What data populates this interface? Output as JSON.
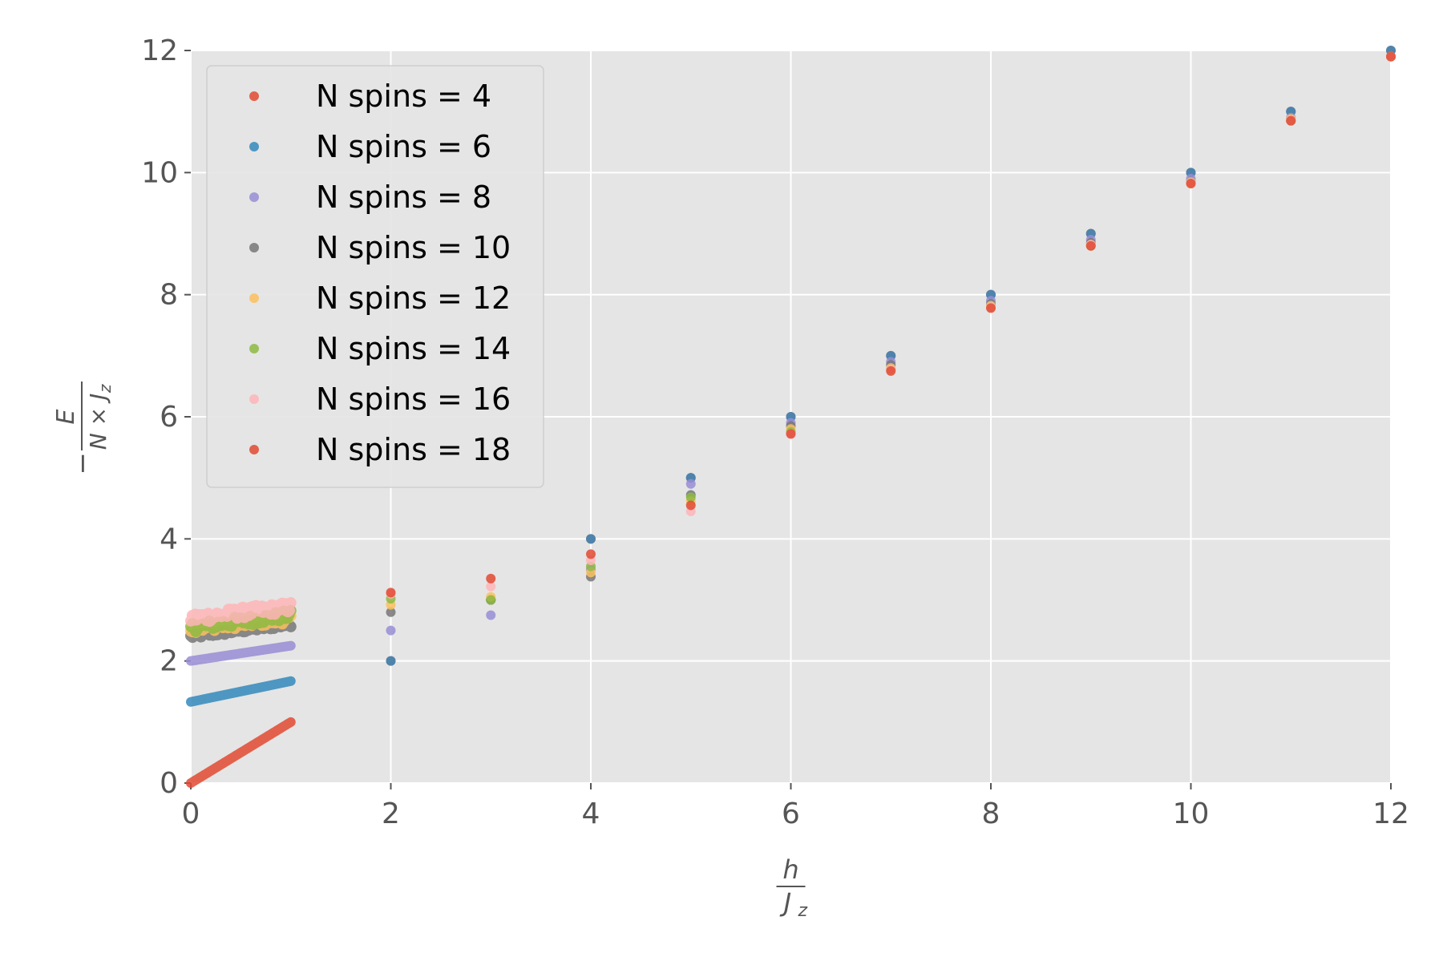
{
  "chart_data": {
    "type": "scatter",
    "title": "",
    "xlabel": {
      "numerator": "h",
      "denominator": "J",
      "denominator_sub": "z"
    },
    "ylabel": {
      "prefix": "−",
      "numerator": "E",
      "denominator": "N × J",
      "denominator_sub": "z"
    },
    "xlim": [
      0,
      12
    ],
    "ylim": [
      0,
      12
    ],
    "xticks": [
      "0",
      "2",
      "4",
      "6",
      "8",
      "10",
      "12"
    ],
    "yticks": [
      "0",
      "2",
      "4",
      "6",
      "8",
      "10",
      "12"
    ],
    "grid": true,
    "legend_position": "upper-left",
    "background": "#e5e5e5",
    "grid_color": "#ffffff",
    "series": [
      {
        "name": "N spins = 4",
        "color": "#e24a33",
        "dense": {
          "x0": 0.0,
          "x1": 1.0,
          "y0": 0.0,
          "y1": 1.0,
          "n": 60,
          "jitter": 0.0
        },
        "points": [
          [
            2,
            2.0
          ],
          [
            3,
            3.0
          ],
          [
            4,
            4.0
          ],
          [
            5,
            5.0
          ],
          [
            6,
            6.0
          ],
          [
            7,
            7.0
          ],
          [
            8,
            8.0
          ],
          [
            9,
            9.0
          ],
          [
            10,
            10.0
          ],
          [
            11,
            11.0
          ],
          [
            12,
            12.0
          ]
        ]
      },
      {
        "name": "N spins = 6",
        "color": "#348abd",
        "dense": {
          "x0": 0.0,
          "x1": 1.0,
          "y0": 1.33,
          "y1": 1.67,
          "n": 60,
          "jitter": 0.0
        },
        "points": [
          [
            2,
            2.0
          ],
          [
            3,
            3.0
          ],
          [
            4,
            4.0
          ],
          [
            5,
            5.0
          ],
          [
            6,
            6.0
          ],
          [
            7,
            7.0
          ],
          [
            8,
            8.0
          ],
          [
            9,
            9.0
          ],
          [
            10,
            10.0
          ],
          [
            11,
            11.0
          ],
          [
            12,
            12.0
          ]
        ]
      },
      {
        "name": "N spins = 8",
        "color": "#988ed5",
        "dense": {
          "x0": 0.0,
          "x1": 1.0,
          "y0": 2.0,
          "y1": 2.25,
          "n": 60,
          "jitter": 0.0
        },
        "points": [
          [
            2,
            2.5
          ],
          [
            3,
            2.75
          ],
          [
            4,
            3.5
          ],
          [
            5,
            4.9
          ],
          [
            6,
            5.9
          ],
          [
            7,
            6.9
          ],
          [
            8,
            7.9
          ],
          [
            9,
            8.9
          ],
          [
            10,
            9.9
          ],
          [
            11,
            10.9
          ],
          [
            12,
            11.9
          ]
        ]
      },
      {
        "name": "N spins = 10",
        "color": "#777777",
        "dense": {
          "x0": 0.0,
          "x1": 1.0,
          "y0": 2.4,
          "y1": 2.6,
          "n": 60,
          "jitter": 0.04
        },
        "points": [
          [
            2,
            2.8
          ],
          [
            3,
            3.0
          ],
          [
            4,
            3.38
          ],
          [
            5,
            4.72
          ],
          [
            6,
            5.85
          ],
          [
            7,
            6.85
          ],
          [
            8,
            7.85
          ],
          [
            9,
            8.85
          ],
          [
            10,
            9.85
          ],
          [
            11,
            10.85
          ],
          [
            12,
            11.9
          ]
        ]
      },
      {
        "name": "N spins = 12",
        "color": "#fbc15e",
        "dense": {
          "x0": 0.0,
          "x1": 1.0,
          "y0": 2.52,
          "y1": 2.68,
          "n": 60,
          "jitter": 0.06
        },
        "points": [
          [
            2,
            2.92
          ],
          [
            3,
            3.05
          ],
          [
            4,
            3.45
          ],
          [
            5,
            4.62
          ],
          [
            6,
            5.8
          ],
          [
            7,
            6.8
          ],
          [
            8,
            7.82
          ],
          [
            9,
            8.82
          ],
          [
            10,
            9.82
          ],
          [
            11,
            10.88
          ],
          [
            12,
            11.9
          ]
        ]
      },
      {
        "name": "N spins = 14",
        "color": "#8eba42",
        "dense": {
          "x0": 0.0,
          "x1": 1.0,
          "y0": 2.55,
          "y1": 2.75,
          "n": 60,
          "jitter": 0.08
        },
        "points": [
          [
            2,
            3.02
          ],
          [
            3,
            3.0
          ],
          [
            4,
            3.55
          ],
          [
            5,
            4.68
          ],
          [
            6,
            5.75
          ],
          [
            7,
            6.78
          ],
          [
            8,
            7.8
          ],
          [
            9,
            8.8
          ],
          [
            10,
            9.85
          ],
          [
            11,
            10.85
          ],
          [
            12,
            11.9
          ]
        ]
      },
      {
        "name": "N spins = 16",
        "color": "#ffb5b8",
        "dense": {
          "x0": 0.0,
          "x1": 1.0,
          "y0": 2.7,
          "y1": 2.88,
          "n": 70,
          "jitter": 0.09
        },
        "points": [
          [
            2,
            3.1
          ],
          [
            3,
            3.22
          ],
          [
            4,
            3.65
          ],
          [
            5,
            4.45
          ],
          [
            6,
            5.72
          ],
          [
            7,
            6.78
          ],
          [
            8,
            7.8
          ],
          [
            9,
            8.82
          ],
          [
            10,
            9.84
          ],
          [
            11,
            10.86
          ],
          [
            12,
            11.9
          ]
        ]
      },
      {
        "name": "N spins = 18",
        "color": "#e24a33",
        "dense": null,
        "points": [
          [
            2,
            3.12
          ],
          [
            3,
            3.35
          ],
          [
            4,
            3.75
          ],
          [
            5,
            4.55
          ],
          [
            6,
            5.72
          ],
          [
            7,
            6.75
          ],
          [
            8,
            7.78
          ],
          [
            9,
            8.8
          ],
          [
            10,
            9.82
          ],
          [
            11,
            10.85
          ],
          [
            12,
            11.9
          ]
        ]
      }
    ]
  }
}
